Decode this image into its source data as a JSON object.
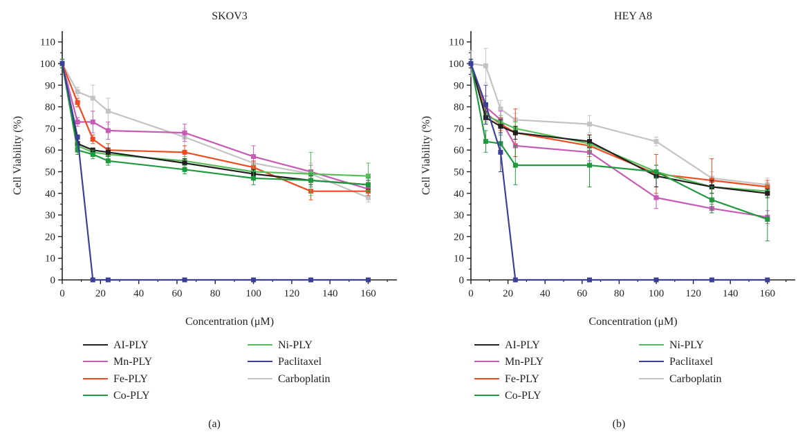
{
  "figure": {
    "panels": [
      {
        "id": "a",
        "panel_label": "(a)"
      },
      {
        "id": "b",
        "panel_label": "(b)"
      }
    ]
  },
  "chart_data": [
    {
      "type": "line",
      "title": "SKOV3",
      "xlabel": "Concentration (μM)",
      "ylabel": "Cell Viability (%)",
      "xlim": [
        0,
        175
      ],
      "ylim": [
        0,
        115
      ],
      "xticks": [
        0,
        20,
        40,
        60,
        80,
        100,
        120,
        140,
        160
      ],
      "yticks": [
        0,
        10,
        20,
        30,
        40,
        50,
        60,
        70,
        80,
        90,
        100,
        110
      ],
      "grid": false,
      "legend_position": "bottom",
      "x": [
        0,
        8,
        16,
        24,
        64,
        100,
        130,
        160
      ],
      "series": [
        {
          "name": "AI-PLY",
          "color": "#231f20",
          "values": [
            100,
            63,
            60,
            59,
            54,
            49,
            46,
            44
          ],
          "errors": [
            2,
            2,
            1,
            2,
            2,
            2,
            2,
            2
          ]
        },
        {
          "name": "Mn-PLY",
          "color": "#c65ab4",
          "values": [
            100,
            73,
            73,
            69,
            68,
            57,
            50,
            42
          ],
          "errors": [
            2,
            2,
            5,
            4,
            4,
            5,
            3,
            3
          ]
        },
        {
          "name": "Fe-PLY",
          "color": "#ee4b23",
          "values": [
            100,
            82,
            65,
            60,
            59,
            52,
            41,
            41
          ],
          "errors": [
            2,
            2,
            2,
            3,
            3,
            3,
            4,
            2
          ]
        },
        {
          "name": "Co-PLY",
          "color": "#1f9a3f",
          "values": [
            100,
            60,
            58,
            55,
            51,
            47,
            46,
            44
          ],
          "errors": [
            2,
            2,
            2,
            2,
            2,
            3,
            3,
            3
          ]
        },
        {
          "name": "Ni-PLY",
          "color": "#57bd59",
          "values": [
            100,
            62,
            59,
            58,
            55,
            50,
            49,
            48
          ],
          "errors": [
            2,
            2,
            2,
            2,
            2,
            3,
            10,
            6
          ]
        },
        {
          "name": "Paclitaxel",
          "color": "#3b3f98",
          "values": [
            100,
            66,
            0,
            0,
            0,
            0,
            0,
            0
          ],
          "errors": [
            1,
            1,
            0,
            0,
            0,
            0,
            0,
            0
          ]
        },
        {
          "name": "Carboplatin",
          "color": "#c3c3c3",
          "values": [
            100,
            87,
            84,
            78,
            66,
            54,
            49,
            38
          ],
          "errors": [
            2,
            2,
            6,
            6,
            4,
            3,
            5,
            2
          ]
        }
      ]
    },
    {
      "type": "line",
      "title": "HEY A8",
      "xlabel": "Concentration (μM)",
      "ylabel": "Cell Viability (%)",
      "xlim": [
        0,
        175
      ],
      "ylim": [
        0,
        115
      ],
      "xticks": [
        0,
        20,
        40,
        60,
        80,
        100,
        120,
        140,
        160
      ],
      "yticks": [
        0,
        10,
        20,
        30,
        40,
        50,
        60,
        70,
        80,
        90,
        100,
        110
      ],
      "grid": false,
      "legend_position": "bottom",
      "x": [
        0,
        8,
        16,
        24,
        64,
        100,
        130,
        160
      ],
      "series": [
        {
          "name": "AI-PLY",
          "color": "#231f20",
          "values": [
            100,
            75,
            71,
            68,
            64,
            48,
            43,
            40
          ],
          "errors": [
            2,
            3,
            3,
            3,
            3,
            5,
            3,
            2
          ]
        },
        {
          "name": "Mn-PLY",
          "color": "#c65ab4",
          "values": [
            100,
            80,
            74,
            62,
            59,
            38,
            33,
            29
          ],
          "errors": [
            2,
            5,
            4,
            5,
            4,
            5,
            2,
            3
          ]
        },
        {
          "name": "Fe-PLY",
          "color": "#ee4b23",
          "values": [
            100,
            77,
            72,
            68,
            62,
            49,
            46,
            43
          ],
          "errors": [
            2,
            3,
            3,
            11,
            5,
            9,
            10,
            3
          ]
        },
        {
          "name": "Co-PLY",
          "color": "#1f9a3f",
          "values": [
            100,
            64,
            63,
            53,
            53,
            50,
            37,
            28
          ],
          "errors": [
            2,
            5,
            4,
            9,
            10,
            3,
            6,
            10
          ]
        },
        {
          "name": "Ni-PLY",
          "color": "#57bd59",
          "values": [
            100,
            76,
            73,
            70,
            63,
            50,
            43,
            41
          ],
          "errors": [
            2,
            3,
            3,
            3,
            3,
            3,
            3,
            3
          ]
        },
        {
          "name": "Paclitaxel",
          "color": "#3b3f98",
          "values": [
            100,
            81,
            59,
            0,
            0,
            0,
            0,
            0
          ],
          "errors": [
            2,
            9,
            9,
            0,
            0,
            0,
            0,
            0
          ]
        },
        {
          "name": "Carboplatin",
          "color": "#c3c3c3",
          "values": [
            100,
            99,
            79,
            74,
            72,
            64,
            47,
            44
          ],
          "errors": [
            6,
            8,
            4,
            3,
            4,
            2,
            3,
            3
          ]
        }
      ]
    }
  ]
}
